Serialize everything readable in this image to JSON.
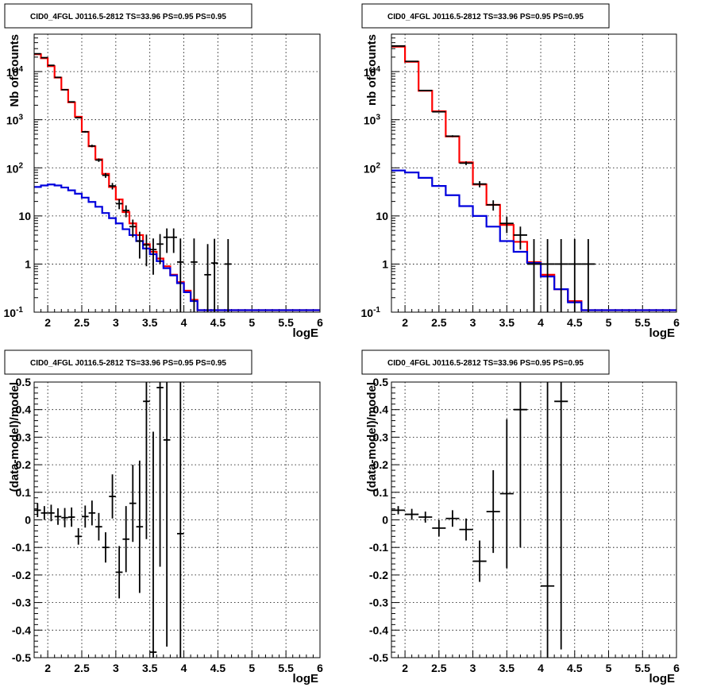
{
  "chart_data": [
    {
      "type": "line",
      "title": "CID0_4FGL J0116.5-2812 TS=33.96 PS=0.95 PS=0.95",
      "xlabel": "logE",
      "ylabel": "Nb of counts",
      "xlim": [
        1.8,
        6.0
      ],
      "ylim": [
        0.1,
        60000
      ],
      "ylog": true,
      "grid": true,
      "x_ticks": [
        "2",
        "2.5",
        "3",
        "3.5",
        "4",
        "4.5",
        "5",
        "5.5",
        "6"
      ],
      "y_ticks": [
        "10^-1",
        "1",
        "10",
        "10^2",
        "10^3",
        "10^4"
      ],
      "bin_edges": [
        1.8,
        1.9,
        2.0,
        2.1,
        2.2,
        2.3,
        2.4,
        2.5,
        2.6,
        2.7,
        2.8,
        2.9,
        3.0,
        3.1,
        3.2,
        3.3,
        3.4,
        3.5,
        3.6,
        3.7,
        3.8,
        3.9,
        4.0,
        4.1,
        4.2,
        4.3,
        4.4,
        4.5,
        4.6,
        4.7,
        4.8,
        4.9,
        5.0,
        5.1,
        5.2,
        5.3,
        5.4,
        5.5,
        5.6,
        5.7,
        5.8,
        5.9,
        6.0
      ],
      "series": [
        {
          "color": "#ff0000",
          "style": "histogram",
          "values": [
            23000,
            19000,
            13000,
            7500,
            4200,
            2300,
            1150,
            560,
            280,
            150,
            75,
            40,
            22,
            12,
            7,
            4,
            2.6,
            1.8,
            1.3,
            0.9,
            0.6,
            0.42,
            0.28,
            0.18,
            0.11
          ]
        },
        {
          "color": "#0000dd",
          "style": "histogram",
          "values": [
            40,
            43,
            45,
            43,
            39,
            34,
            29,
            24,
            19.5,
            15.5,
            11.5,
            9,
            7,
            5.3,
            4,
            3,
            2.1,
            1.6,
            1.15,
            0.82,
            0.58,
            0.4,
            0.26,
            0.17,
            0.11
          ]
        }
      ],
      "data_points": {
        "color": "#000000",
        "x": [
          1.85,
          1.95,
          2.05,
          2.15,
          2.25,
          2.35,
          2.45,
          2.55,
          2.65,
          2.75,
          2.85,
          2.95,
          3.05,
          3.15,
          3.25,
          3.35,
          3.45,
          3.55,
          3.65,
          3.75,
          3.85,
          3.95,
          4.15,
          4.35,
          4.45,
          4.65
        ],
        "y": [
          23500,
          19500,
          13500,
          7600,
          4200,
          2350,
          1100,
          560,
          285,
          145,
          70,
          42,
          18,
          13,
          6,
          3,
          2.5,
          2,
          2.6,
          3.6,
          3.6,
          1.1,
          1.1,
          0.6,
          1.05,
          1.0
        ],
        "yerr_low": [
          150,
          140,
          115,
          87,
          65,
          48,
          33,
          24,
          17,
          12,
          8,
          6.5,
          4.2,
          3.6,
          2.4,
          1.7,
          1.6,
          1.4,
          1.6,
          1.9,
          1.9,
          1.0,
          1.0,
          0.55,
          1.0,
          1.0
        ],
        "yerr_high": [
          150,
          140,
          115,
          87,
          65,
          48,
          33,
          24,
          17,
          12,
          8,
          6.5,
          4.2,
          3.6,
          2.4,
          1.7,
          1.6,
          1.4,
          1.6,
          1.9,
          1.9,
          2.3,
          2.3,
          2.0,
          2.3,
          2.3
        ]
      }
    },
    {
      "type": "line",
      "title": "CID0_4FGL J0116.5-2812 TS=33.96 PS=0.95 PS=0.95",
      "xlabel": "logE",
      "ylabel": "nb of counts",
      "xlim": [
        1.8,
        6.0
      ],
      "ylim": [
        0.1,
        60000
      ],
      "ylog": true,
      "grid": true,
      "x_ticks": [
        "2",
        "2.5",
        "3",
        "3.5",
        "4",
        "4.5",
        "5",
        "5.5",
        "6"
      ],
      "y_ticks": [
        "10^-1",
        "1",
        "10",
        "10^2",
        "10^3",
        "10^4"
      ],
      "bin_edges": [
        1.8,
        2.0,
        2.2,
        2.4,
        2.6,
        2.8,
        3.0,
        3.2,
        3.4,
        3.6,
        3.8,
        4.0,
        4.2,
        4.4,
        4.6,
        4.8,
        5.0,
        5.2,
        5.4,
        5.6,
        5.8,
        6.0
      ],
      "series": [
        {
          "color": "#ff0000",
          "style": "histogram",
          "values": [
            33000,
            16000,
            4000,
            1500,
            450,
            130,
            45,
            17,
            6.5,
            2.9,
            1.1,
            0.6,
            0.3,
            0.17,
            0.11
          ]
        },
        {
          "color": "#0000dd",
          "style": "histogram",
          "values": [
            88,
            80,
            62,
            42,
            27,
            16,
            10,
            6,
            3,
            1.8,
            1.05,
            0.55,
            0.3,
            0.16,
            0.11
          ]
        }
      ],
      "data_points": {
        "color": "#000000",
        "x": [
          1.9,
          2.1,
          2.3,
          2.5,
          2.7,
          2.9,
          3.1,
          3.3,
          3.5,
          3.7,
          3.9,
          4.1,
          4.3,
          4.5,
          4.7
        ],
        "y": [
          34000,
          16300,
          4050,
          1460,
          455,
          125,
          46,
          17,
          7,
          4,
          1,
          1,
          1,
          1,
          1
        ],
        "yerr_low": [
          180,
          127,
          64,
          38,
          21,
          11,
          6.8,
          4.1,
          2.6,
          2.0,
          1.0,
          1.0,
          1.0,
          1.0,
          1.0
        ],
        "yerr_high": [
          180,
          127,
          64,
          38,
          21,
          11,
          6.8,
          4.1,
          2.6,
          2.0,
          2.3,
          2.3,
          2.3,
          2.3,
          2.3
        ]
      }
    },
    {
      "type": "scatter",
      "title": "CID0_4FGL J0116.5-2812 TS=33.96 PS=0.95 PS=0.95",
      "xlabel": "logE",
      "ylabel": "(data-model)/model",
      "xlim": [
        1.8,
        6.0
      ],
      "ylim": [
        -0.5,
        0.5
      ],
      "grid": true,
      "x_ticks": [
        "2",
        "2.5",
        "3",
        "3.5",
        "4",
        "4.5",
        "5",
        "5.5",
        "6"
      ],
      "y_ticks": [
        "-0.5",
        "-0.4",
        "-0.3",
        "-0.2",
        "-0.1",
        "0",
        "0.1",
        "0.2",
        "0.3",
        "0.4",
        "0.5"
      ],
      "xerr": 0.05,
      "points": {
        "x": [
          1.85,
          1.95,
          2.05,
          2.15,
          2.25,
          2.35,
          2.45,
          2.55,
          2.65,
          2.75,
          2.85,
          2.95,
          3.05,
          3.15,
          3.25,
          3.35,
          3.45,
          3.55,
          3.65,
          3.75,
          3.95
        ],
        "y": [
          0.035,
          0.025,
          0.025,
          0.012,
          0.008,
          0.01,
          -0.06,
          0.012,
          0.025,
          -0.025,
          -0.1,
          0.085,
          -0.19,
          -0.07,
          0.06,
          -0.025,
          0.43,
          -0.48,
          0.48,
          0.29,
          -0.05
        ],
        "yerr": [
          0.025,
          0.025,
          0.03,
          0.03,
          0.035,
          0.035,
          0.03,
          0.04,
          0.045,
          0.05,
          0.055,
          0.08,
          0.095,
          0.12,
          0.14,
          0.24,
          0.5,
          0.8,
          0.65,
          0.75,
          0.9
        ]
      }
    },
    {
      "type": "scatter",
      "title": "CID0_4FGL J0116.5-2812 TS=33.96 PS=0.95 PS=0.95",
      "xlabel": "logE",
      "ylabel": "(data-model)/model",
      "xlim": [
        1.8,
        6.0
      ],
      "ylim": [
        -0.5,
        0.5
      ],
      "grid": true,
      "x_ticks": [
        "2",
        "2.5",
        "3",
        "3.5",
        "4",
        "4.5",
        "5",
        "5.5",
        "6"
      ],
      "y_ticks": [
        "-0.5",
        "-0.4",
        "-0.3",
        "-0.2",
        "-0.1",
        "0",
        "0.1",
        "0.2",
        "0.3",
        "0.4",
        "0.5"
      ],
      "xerr": 0.1,
      "points": {
        "x": [
          1.9,
          2.1,
          2.3,
          2.5,
          2.7,
          2.9,
          3.1,
          3.3,
          3.5,
          3.7,
          4.1,
          4.3
        ],
        "y": [
          0.035,
          0.02,
          0.01,
          -0.03,
          0.005,
          -0.035,
          -0.15,
          0.03,
          0.095,
          0.4,
          -0.24,
          0.43
        ]
      },
      "yerr": [
        0.015,
        0.02,
        0.02,
        0.03,
        0.03,
        0.04,
        0.075,
        0.15,
        0.27,
        0.5,
        0.9,
        0.9
      ]
    }
  ]
}
